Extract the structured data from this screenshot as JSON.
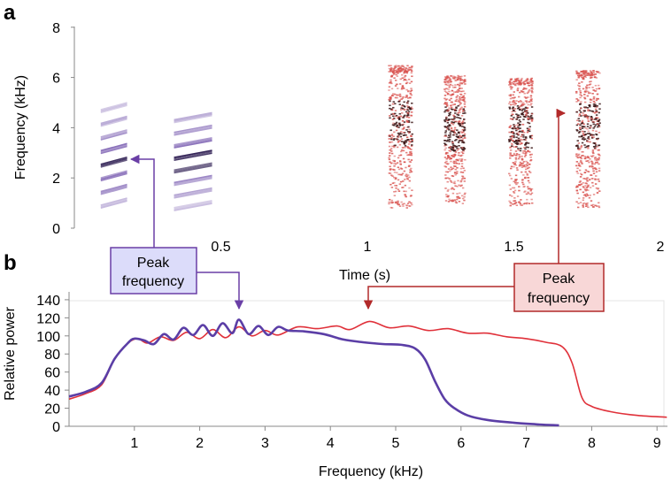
{
  "chart_data": [
    {
      "panel_label": "a",
      "type": "scatter",
      "subtype": "spectrogram",
      "xlabel": "Time (s)",
      "ylabel": "Frequency (kHz)",
      "xlim": [
        0,
        2
      ],
      "ylim": [
        0,
        8
      ],
      "x_ticks": [
        0.5,
        1,
        1.5,
        2
      ],
      "x_tick_labels": [
        "0.5",
        "1",
        "1.5",
        "2"
      ],
      "y_ticks": [
        0,
        2,
        4,
        6,
        8
      ],
      "y_tick_labels": [
        "0",
        "2",
        "4",
        "6",
        "8"
      ],
      "series": [
        {
          "name": "purple calls",
          "color": "#6a4aa8",
          "syllables": [
            {
              "t_start": 0.09,
              "t_end": 0.18,
              "f_low": 1.0,
              "f_high": 4.8,
              "peak_f": 2.7
            },
            {
              "t_start": 0.34,
              "t_end": 0.47,
              "f_low": 0.9,
              "f_high": 4.4,
              "peak_f": 2.8
            }
          ]
        },
        {
          "name": "red calls",
          "color": "#d9534f",
          "syllables": [
            {
              "t_start": 1.07,
              "t_end": 1.15,
              "f_low": 0.8,
              "f_high": 6.5,
              "peak_f": 4.2
            },
            {
              "t_start": 1.26,
              "t_end": 1.33,
              "f_low": 1.0,
              "f_high": 6.1,
              "peak_f": 4.0
            },
            {
              "t_start": 1.48,
              "t_end": 1.56,
              "f_low": 0.9,
              "f_high": 6.0,
              "peak_f": 4.0
            },
            {
              "t_start": 1.71,
              "t_end": 1.79,
              "f_low": 0.8,
              "f_high": 6.3,
              "peak_f": 4.1
            }
          ]
        }
      ]
    },
    {
      "panel_label": "b",
      "type": "line",
      "xlabel": "Frequency (kHz)",
      "ylabel": "Relative power",
      "xlim": [
        0,
        9.15
      ],
      "ylim": [
        0,
        140
      ],
      "x_ticks": [
        1,
        2,
        3,
        4,
        5,
        6,
        7,
        8,
        9
      ],
      "x_tick_labels": [
        "1",
        "2",
        "3",
        "4",
        "5",
        "6",
        "7",
        "8",
        "9"
      ],
      "y_ticks": [
        0,
        20,
        40,
        60,
        80,
        100,
        120,
        140
      ],
      "y_tick_labels": [
        "0",
        "20",
        "40",
        "60",
        "80",
        "100",
        "120",
        "140"
      ],
      "series": [
        {
          "name": "purple",
          "color": "#5b3ea6",
          "x": [
            0,
            0.25,
            0.5,
            0.7,
            0.9,
            1.0,
            1.15,
            1.3,
            1.45,
            1.6,
            1.75,
            1.9,
            2.05,
            2.2,
            2.35,
            2.5,
            2.6,
            2.75,
            2.9,
            3.05,
            3.2,
            3.35,
            3.6,
            3.9,
            4.2,
            4.5,
            4.8,
            5.1,
            5.3,
            5.45,
            5.6,
            5.75,
            5.9,
            6.1,
            6.4,
            6.8,
            7.2,
            7.5
          ],
          "y": [
            33,
            38,
            48,
            75,
            92,
            97,
            95,
            91,
            102,
            96,
            109,
            101,
            112,
            100,
            114,
            103,
            118,
            102,
            111,
            101,
            110,
            106,
            105,
            102,
            96,
            93,
            91,
            90,
            86,
            74,
            50,
            30,
            20,
            12,
            7,
            4,
            2,
            1
          ]
        },
        {
          "name": "red",
          "color": "#e0313a",
          "x": [
            0,
            0.25,
            0.5,
            0.7,
            0.9,
            1.05,
            1.2,
            1.4,
            1.6,
            1.8,
            2.0,
            2.2,
            2.4,
            2.6,
            2.8,
            3.0,
            3.2,
            3.5,
            3.8,
            4.1,
            4.3,
            4.6,
            4.9,
            5.2,
            5.5,
            5.8,
            6.1,
            6.4,
            6.7,
            7.0,
            7.3,
            7.55,
            7.7,
            7.85,
            8.0,
            8.3,
            8.7,
            9.15
          ],
          "y": [
            30,
            36,
            46,
            75,
            92,
            97,
            92,
            99,
            95,
            104,
            97,
            107,
            98,
            110,
            100,
            106,
            101,
            110,
            108,
            111,
            107,
            116,
            109,
            111,
            106,
            108,
            103,
            103,
            99,
            97,
            93,
            88,
            70,
            32,
            22,
            16,
            12,
            10
          ]
        }
      ],
      "annotations": [
        {
          "text": "Peak frequency",
          "lines": [
            "Peak",
            "frequency"
          ],
          "color": "#5b3ea6",
          "box_fill": "#dcdcfa",
          "points_to": {
            "panel": "b",
            "x": 2.6,
            "y": 118
          },
          "also_points_to": {
            "panel": "a",
            "x": 0.19,
            "y": 2.7
          }
        },
        {
          "text": "Peak frequency",
          "lines": [
            "Peak",
            "frequency"
          ],
          "color": "#b22a2a",
          "box_fill": "#f8d7d7",
          "points_to": {
            "panel": "b",
            "x": 4.6,
            "y": 118
          },
          "also_points_to": {
            "panel": "a",
            "x": 1.71,
            "y": 4.0
          }
        }
      ]
    }
  ]
}
